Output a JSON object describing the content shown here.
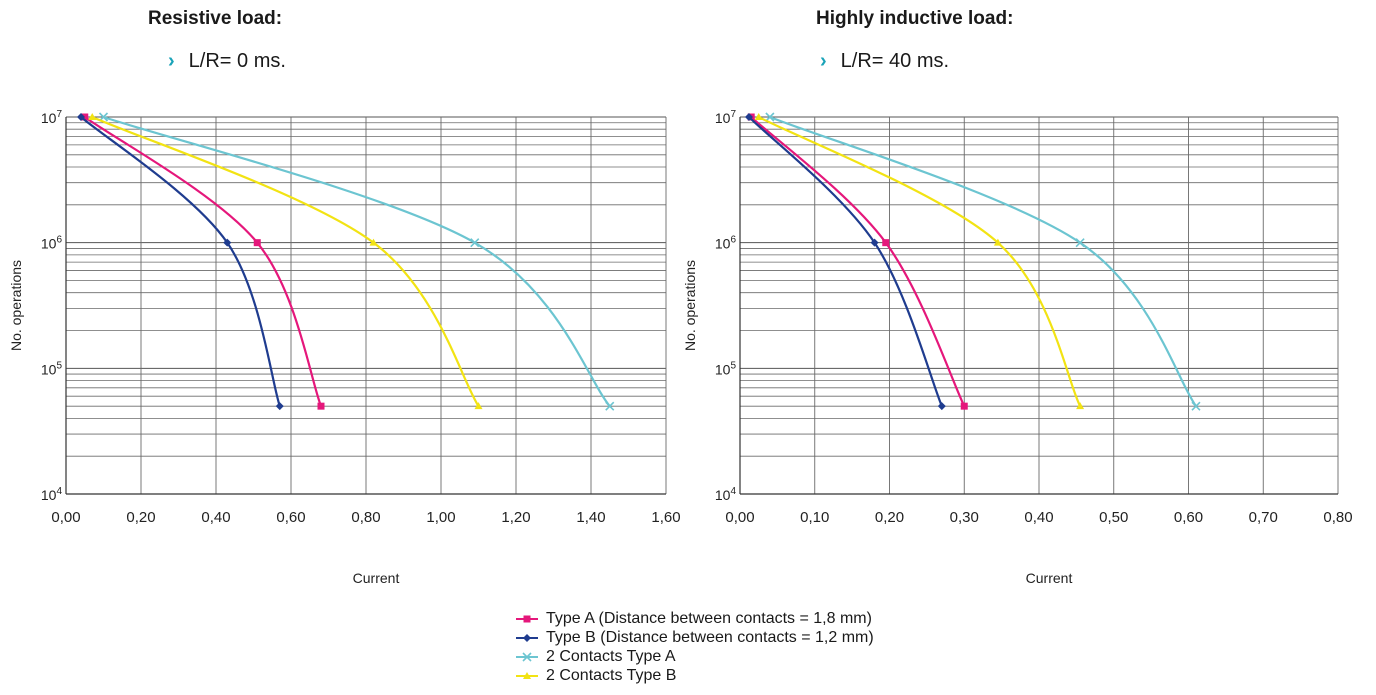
{
  "panels": [
    {
      "title": "Resistive load:",
      "subtitle": "L/R= 0 ms.",
      "bullet": "›"
    },
    {
      "title": "Highly inductive load:",
      "subtitle": "L/R= 40 ms.",
      "bullet": "›"
    }
  ],
  "legend": [
    {
      "label": "Type A (Distance between contacts = 1,8 mm)",
      "color": "#e5177b",
      "marker": "square"
    },
    {
      "label": "Type B (Distance between contacts = 1,2 mm)",
      "color": "#1f3c8f",
      "marker": "diamond"
    },
    {
      "label": "2 Contacts Type A",
      "color": "#6cc5d1",
      "marker": "x"
    },
    {
      "label": "2 Contacts Type B",
      "color": "#f2e313",
      "marker": "triangle"
    }
  ],
  "chart_data": [
    {
      "type": "line",
      "xlabel": "Current",
      "ylabel": "No. operations",
      "xlim": [
        0,
        1.6
      ],
      "ylim": [
        10000,
        10000000
      ],
      "yscale": "log",
      "grid": true,
      "x_ticks": [
        "0,00",
        "0,20",
        "0,40",
        "0,60",
        "0,80",
        "1,00",
        "1,20",
        "1,40",
        "1,60"
      ],
      "y_ticks": [
        {
          "base": "10",
          "exp": "4"
        },
        {
          "base": "10",
          "exp": "5"
        },
        {
          "base": "10",
          "exp": "6"
        },
        {
          "base": "10",
          "exp": "7"
        }
      ],
      "series": [
        {
          "name": "Type A (Distance between contacts = 1,8 mm)",
          "color": "#e5177b",
          "marker": "square",
          "x": [
            0.05,
            0.51,
            0.68
          ],
          "y": [
            10000000,
            1000000,
            50000
          ]
        },
        {
          "name": "Type B (Distance between contacts = 1,2 mm)",
          "color": "#1f3c8f",
          "marker": "diamond",
          "x": [
            0.04,
            0.43,
            0.57
          ],
          "y": [
            10000000,
            1000000,
            50000
          ]
        },
        {
          "name": "2 Contacts Type A",
          "color": "#6cc5d1",
          "marker": "x",
          "x": [
            0.1,
            1.09,
            1.45
          ],
          "y": [
            10000000,
            1000000,
            50000
          ]
        },
        {
          "name": "2 Contacts Type B",
          "color": "#f2e313",
          "marker": "triangle",
          "x": [
            0.07,
            0.82,
            1.1
          ],
          "y": [
            10000000,
            1000000,
            50000
          ]
        }
      ]
    },
    {
      "type": "line",
      "xlabel": "Current",
      "ylabel": "No. operations",
      "xlim": [
        0,
        0.8
      ],
      "ylim": [
        10000,
        10000000
      ],
      "yscale": "log",
      "grid": true,
      "x_ticks": [
        "0,00",
        "0,10",
        "0,20",
        "0,30",
        "0,40",
        "0,50",
        "0,60",
        "0,70",
        "0,80"
      ],
      "y_ticks": [
        {
          "base": "10",
          "exp": "4"
        },
        {
          "base": "10",
          "exp": "5"
        },
        {
          "base": "10",
          "exp": "6"
        },
        {
          "base": "10",
          "exp": "7"
        }
      ],
      "series": [
        {
          "name": "Type A (Distance between contacts = 1,8 mm)",
          "color": "#e5177b",
          "marker": "square",
          "x": [
            0.015,
            0.195,
            0.3
          ],
          "y": [
            10000000,
            1000000,
            50000
          ]
        },
        {
          "name": "Type B (Distance between contacts = 1,2 mm)",
          "color": "#1f3c8f",
          "marker": "diamond",
          "x": [
            0.012,
            0.18,
            0.27
          ],
          "y": [
            10000000,
            1000000,
            50000
          ]
        },
        {
          "name": "2 Contacts Type A",
          "color": "#6cc5d1",
          "marker": "x",
          "x": [
            0.04,
            0.455,
            0.61
          ],
          "y": [
            10000000,
            1000000,
            50000
          ]
        },
        {
          "name": "2 Contacts Type B",
          "color": "#f2e313",
          "marker": "triangle",
          "x": [
            0.025,
            0.345,
            0.455
          ],
          "y": [
            10000000,
            1000000,
            50000
          ]
        }
      ]
    }
  ]
}
